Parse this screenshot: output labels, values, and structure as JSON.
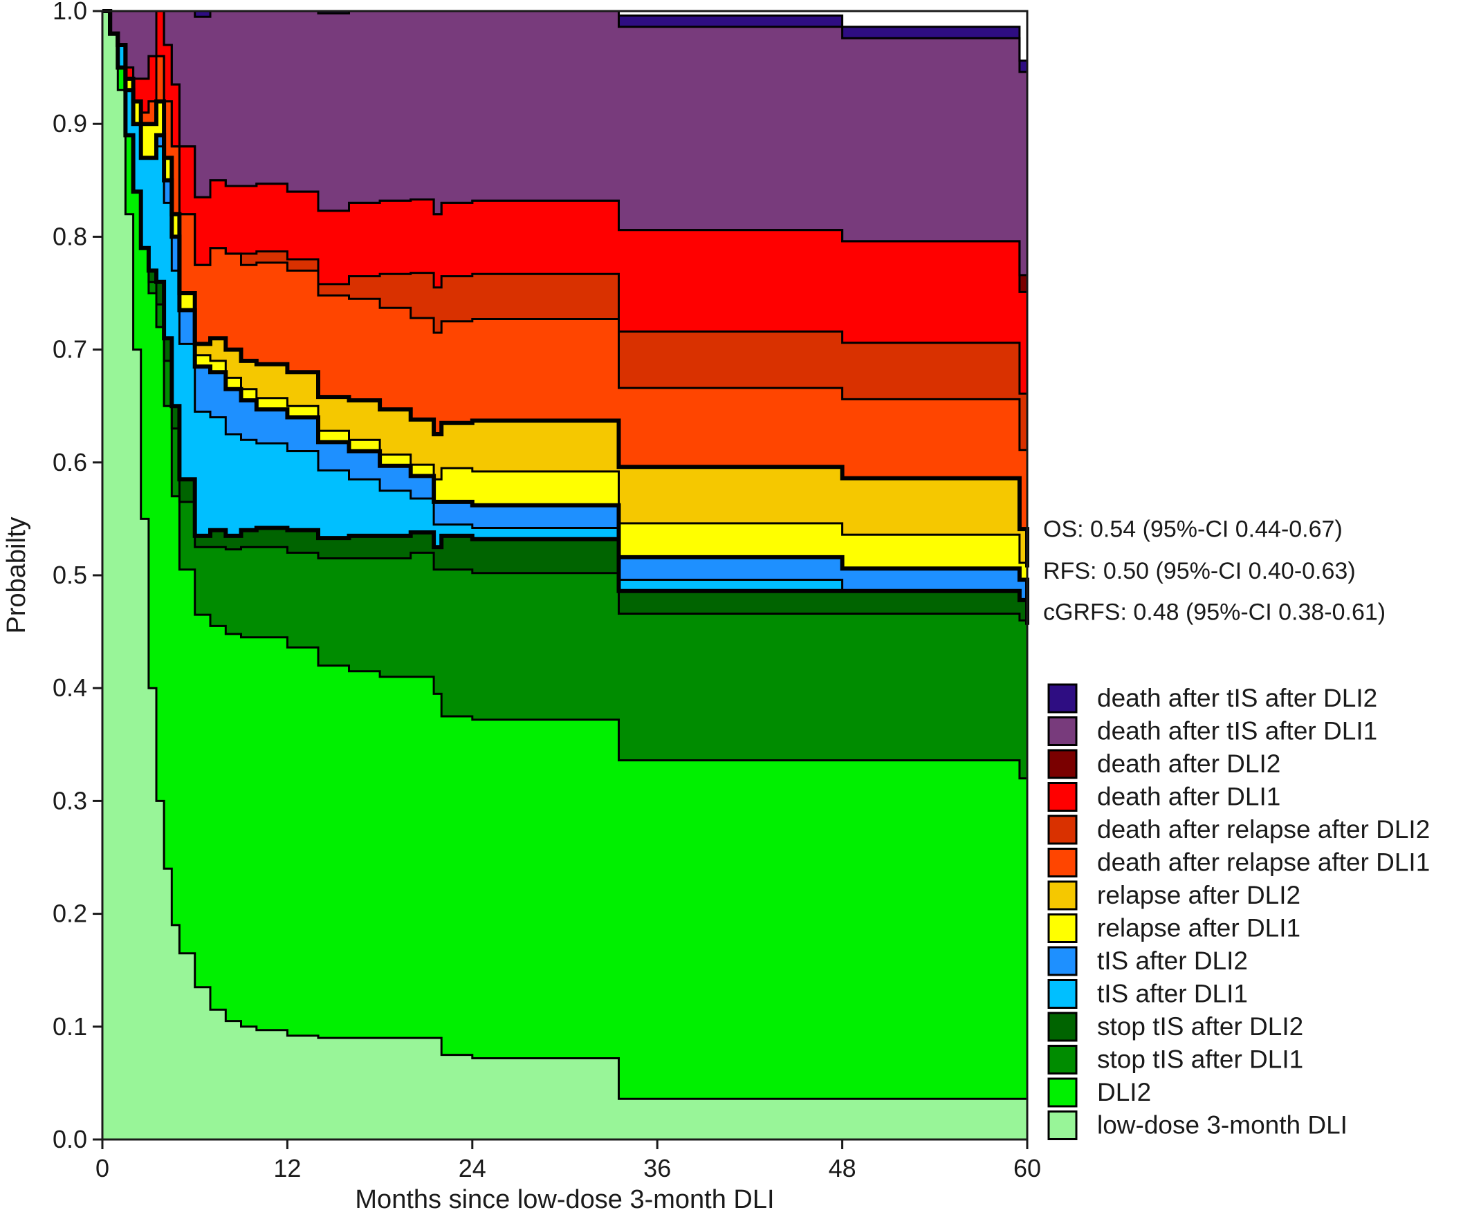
{
  "chart_data": {
    "type": "area",
    "subtype": "stacked-step-probability",
    "xlabel": "Months since low-dose 3-month DLI",
    "ylabel": "Probabilty",
    "xlim": [
      0,
      60
    ],
    "ylim": [
      0,
      1
    ],
    "x_ticks": [
      0,
      12,
      24,
      36,
      48,
      60
    ],
    "y_ticks": [
      0.0,
      0.1,
      0.2,
      0.3,
      0.4,
      0.5,
      0.6,
      0.7,
      0.8,
      0.9,
      1.0
    ],
    "y_tick_labels": [
      "0.0",
      "0.1",
      "0.2",
      "0.3",
      "0.4",
      "0.5",
      "0.6",
      "0.7",
      "0.8",
      "0.9",
      "1.0"
    ],
    "x": [
      0,
      0.5,
      1,
      1.5,
      2,
      2.5,
      3,
      3.5,
      4,
      4.5,
      5,
      6,
      7,
      8,
      9,
      10,
      12,
      14,
      16,
      18,
      20,
      21.5,
      22,
      24,
      33,
      33.5,
      36,
      40,
      48,
      50,
      58,
      59,
      59.5,
      60
    ],
    "series": [
      {
        "name": "low-dose 3-month DLI",
        "color": "#98F598",
        "values": [
          1.0,
          0.98,
          0.93,
          0.82,
          0.7,
          0.55,
          0.4,
          0.3,
          0.24,
          0.19,
          0.165,
          0.135,
          0.115,
          0.105,
          0.1,
          0.097,
          0.092,
          0.09,
          0.09,
          0.09,
          0.09,
          0.09,
          0.075,
          0.072,
          0.072,
          0.036,
          0.036,
          0.036,
          0.036,
          0.036,
          0.036,
          0.036,
          0.036,
          0.036
        ]
      },
      {
        "name": "DLI2",
        "color": "#00F000",
        "values": [
          0.0,
          0.0,
          0.02,
          0.07,
          0.14,
          0.24,
          0.35,
          0.42,
          0.41,
          0.38,
          0.34,
          0.33,
          0.34,
          0.343,
          0.345,
          0.348,
          0.344,
          0.33,
          0.325,
          0.32,
          0.32,
          0.305,
          0.3,
          0.3,
          0.3,
          0.3,
          0.3,
          0.3,
          0.3,
          0.3,
          0.3,
          0.3,
          0.284,
          0.27
        ]
      },
      {
        "name": "stop tIS after DLI1",
        "color": "#008C00",
        "values": [
          0.0,
          0.0,
          0.0,
          0.0,
          0.0,
          0.0,
          0.01,
          0.02,
          0.04,
          0.06,
          0.06,
          0.06,
          0.07,
          0.075,
          0.08,
          0.08,
          0.084,
          0.095,
          0.1,
          0.105,
          0.11,
          0.11,
          0.13,
          0.13,
          0.13,
          0.13,
          0.13,
          0.13,
          0.13,
          0.13,
          0.13,
          0.13,
          0.14,
          0.13
        ]
      },
      {
        "name": "stop tIS after DLI2",
        "color": "#006400",
        "values": [
          0.0,
          0.0,
          0.0,
          0.0,
          0.0,
          0.0,
          0.01,
          0.02,
          0.02,
          0.02,
          0.02,
          0.01,
          0.015,
          0.012,
          0.015,
          0.017,
          0.02,
          0.018,
          0.02,
          0.02,
          0.018,
          0.02,
          0.03,
          0.03,
          0.03,
          0.02,
          0.02,
          0.02,
          0.02,
          0.02,
          0.02,
          0.02,
          0.018,
          0.02
        ]
      },
      {
        "name": "tIS after DLI1",
        "color": "#00BFFF",
        "values": [
          0.0,
          0.0,
          0.02,
          0.04,
          0.06,
          0.08,
          0.1,
          0.12,
          0.12,
          0.12,
          0.12,
          0.11,
          0.1,
          0.09,
          0.08,
          0.075,
          0.07,
          0.06,
          0.05,
          0.04,
          0.03,
          0.02,
          0.01,
          0.01,
          0.01,
          0.01,
          0.01,
          0.01,
          0.0,
          0.0,
          0.0,
          0.0,
          0.0,
          0.0
        ]
      },
      {
        "name": "tIS after DLI2",
        "color": "#1E90FF",
        "values": [
          0.0,
          0.0,
          0.0,
          0.0,
          0.0,
          0.0,
          0.0,
          0.01,
          0.02,
          0.03,
          0.03,
          0.04,
          0.04,
          0.04,
          0.035,
          0.03,
          0.03,
          0.025,
          0.025,
          0.022,
          0.02,
          0.02,
          0.02,
          0.02,
          0.02,
          0.02,
          0.02,
          0.02,
          0.02,
          0.02,
          0.02,
          0.02,
          0.018,
          0.018
        ]
      },
      {
        "name": "relapse after DLI1",
        "color": "#FFFF00",
        "values": [
          0.0,
          0.0,
          0.0,
          0.01,
          0.02,
          0.03,
          0.03,
          0.03,
          0.02,
          0.02,
          0.015,
          0.01,
          0.01,
          0.01,
          0.01,
          0.01,
          0.01,
          0.01,
          0.01,
          0.01,
          0.01,
          0.02,
          0.03,
          0.03,
          0.03,
          0.03,
          0.03,
          0.03,
          0.03,
          0.03,
          0.03,
          0.03,
          0.015,
          0.015
        ]
      },
      {
        "name": "relapse after DLI2",
        "color": "#F5C800",
        "values": [
          0.0,
          0.0,
          0.0,
          0.0,
          0.0,
          0.0,
          0.0,
          0.0,
          0.0,
          0.0,
          0.0,
          0.01,
          0.02,
          0.025,
          0.025,
          0.03,
          0.03,
          0.03,
          0.035,
          0.04,
          0.04,
          0.04,
          0.04,
          0.045,
          0.045,
          0.05,
          0.05,
          0.05,
          0.05,
          0.05,
          0.05,
          0.05,
          0.03,
          0.018
        ]
      },
      {
        "name": "death after relapse after DLI1",
        "color": "#FF4500",
        "values": [
          0.0,
          0.0,
          0.0,
          0.0,
          0.0,
          0.01,
          0.02,
          0.04,
          0.05,
          0.06,
          0.07,
          0.07,
          0.08,
          0.085,
          0.085,
          0.09,
          0.09,
          0.09,
          0.09,
          0.09,
          0.09,
          0.09,
          0.09,
          0.09,
          0.09,
          0.07,
          0.07,
          0.07,
          0.07,
          0.07,
          0.07,
          0.07,
          0.07,
          0.07
        ]
      },
      {
        "name": "death after relapse after DLI2",
        "color": "#D93100",
        "values": [
          0.0,
          0.0,
          0.0,
          0.0,
          0.0,
          0.0,
          0.0,
          0.0,
          0.0,
          0.0,
          0.0,
          0.0,
          0.0,
          0.0,
          0.01,
          0.01,
          0.01,
          0.01,
          0.02,
          0.03,
          0.04,
          0.04,
          0.04,
          0.04,
          0.04,
          0.05,
          0.05,
          0.05,
          0.05,
          0.05,
          0.05,
          0.05,
          0.05,
          0.05
        ]
      },
      {
        "name": "death after DLI1",
        "color": "#FF0000",
        "values": [
          0.0,
          0.0,
          0.0,
          0.01,
          0.02,
          0.03,
          0.04,
          0.05,
          0.05,
          0.055,
          0.06,
          0.06,
          0.06,
          0.06,
          0.06,
          0.06,
          0.06,
          0.065,
          0.065,
          0.065,
          0.065,
          0.065,
          0.065,
          0.065,
          0.065,
          0.09,
          0.09,
          0.09,
          0.09,
          0.09,
          0.09,
          0.09,
          0.09,
          0.09
        ]
      },
      {
        "name": "death after DLI2",
        "color": "#7A0000",
        "values": [
          0.0,
          0.0,
          0.0,
          0.0,
          0.0,
          0.0,
          0.0,
          0.0,
          0.0,
          0.0,
          0.0,
          0.0,
          0.0,
          0.0,
          0.0,
          0.0,
          0.0,
          0.0,
          0.0,
          0.0,
          0.0,
          0.0,
          0.0,
          0.0,
          0.0,
          0.0,
          0.0,
          0.0,
          0.0,
          0.0,
          0.0,
          0.0,
          0.015,
          0.015
        ]
      },
      {
        "name": "death after tIS after DLI1",
        "color": "#783B7C",
        "values": [
          0.0,
          0.02,
          0.03,
          0.06,
          0.1,
          0.13,
          0.15,
          0.15,
          0.15,
          0.15,
          0.15,
          0.16,
          0.16,
          0.165,
          0.165,
          0.165,
          0.17,
          0.175,
          0.175,
          0.18,
          0.18,
          0.18,
          0.18,
          0.18,
          0.18,
          0.18,
          0.18,
          0.18,
          0.18,
          0.18,
          0.18,
          0.18,
          0.18,
          0.18
        ]
      },
      {
        "name": "death after tIS after DLI2",
        "color": "#2E0D82",
        "values": [
          0.0,
          0.0,
          0.0,
          0.0,
          0.0,
          0.0,
          0.0,
          0.0,
          0.0,
          0.0,
          0.0,
          0.01,
          0.01,
          0.01,
          0.01,
          0.01,
          0.01,
          0.01,
          0.01,
          0.01,
          0.01,
          0.01,
          0.01,
          0.01,
          0.01,
          0.01,
          0.01,
          0.01,
          0.01,
          0.01,
          0.01,
          0.01,
          0.01,
          0.01
        ]
      }
    ],
    "bold_outline_series": [
      "stop tIS after DLI2",
      "tIS after DLI2",
      "relapse after DLI2"
    ],
    "legend_order": [
      "death after tIS after DLI2",
      "death after tIS after DLI1",
      "death after DLI2",
      "death after DLI1",
      "death after relapse after DLI2",
      "death after relapse after DLI1",
      "relapse after DLI2",
      "relapse after DLI1",
      "tIS after DLI2",
      "tIS after DLI1",
      "stop tIS after DLI2",
      "stop tIS after DLI1",
      "DLI2",
      "low-dose 3-month DLI"
    ],
    "legend_placement": "bottom-right outside plot",
    "annotations": [
      {
        "name": "os",
        "text": "OS: 0.54 (95%-CI 0.44-0.67)",
        "y": 0.54
      },
      {
        "name": "rfs",
        "text": "RFS: 0.50 (95%-CI 0.40-0.63)",
        "y": 0.5
      },
      {
        "name": "cgrfs",
        "text": "cGRFS: 0.48 (95%-CI 0.38-0.61)",
        "y": 0.48
      }
    ]
  }
}
